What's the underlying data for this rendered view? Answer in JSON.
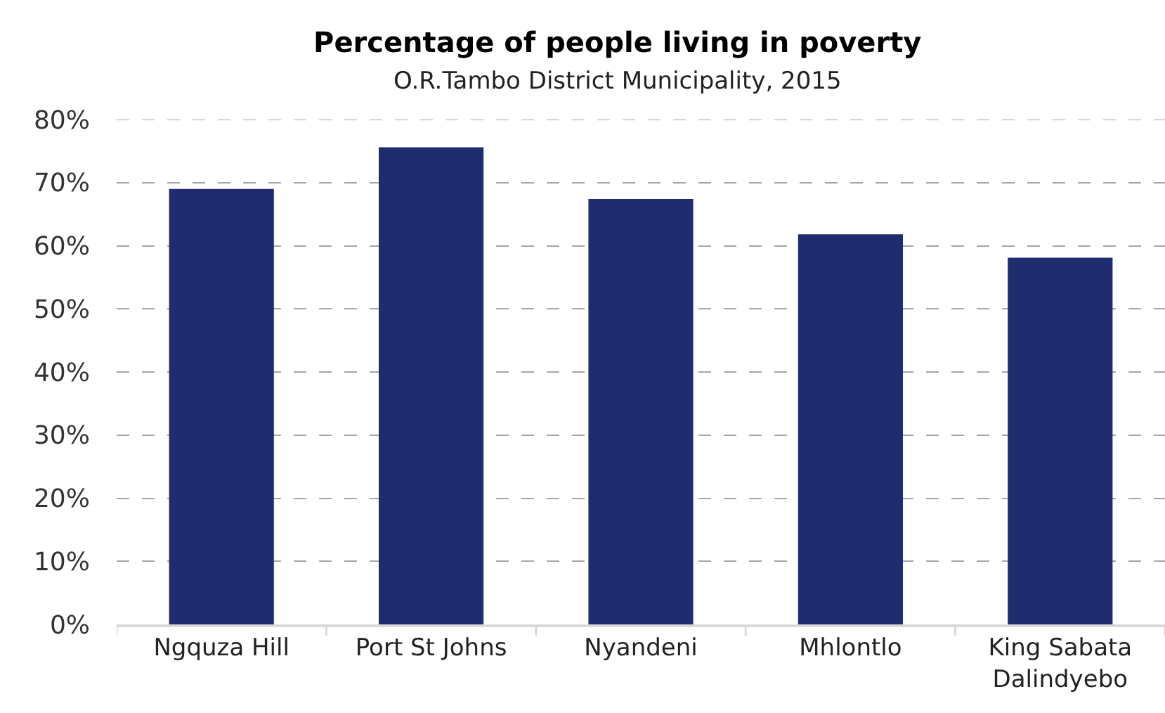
{
  "chart_data": {
    "type": "bar",
    "title": "Percentage of people living in poverty",
    "subtitle": "O.R.Tambo District Municipality, 2015",
    "categories": [
      "Ngquza Hill",
      "Port St Johns",
      "Nyandeni",
      "Mhlontlo",
      "King Sabata Dalindyebo"
    ],
    "values": [
      69,
      75.6,
      67.4,
      61.8,
      58.1
    ],
    "color": "#1f2d6e",
    "ylim": [
      0,
      80
    ],
    "yticks": [
      {
        "value": 0,
        "label": "0%"
      },
      {
        "value": 10,
        "label": "10%"
      },
      {
        "value": 20,
        "label": "20%"
      },
      {
        "value": 30,
        "label": "30%"
      },
      {
        "value": 40,
        "label": "40%"
      },
      {
        "value": 50,
        "label": "50%"
      },
      {
        "value": 60,
        "label": "60%"
      },
      {
        "value": 70,
        "label": "70%"
      },
      {
        "value": 80,
        "label": "80%"
      }
    ],
    "grid": "y"
  }
}
